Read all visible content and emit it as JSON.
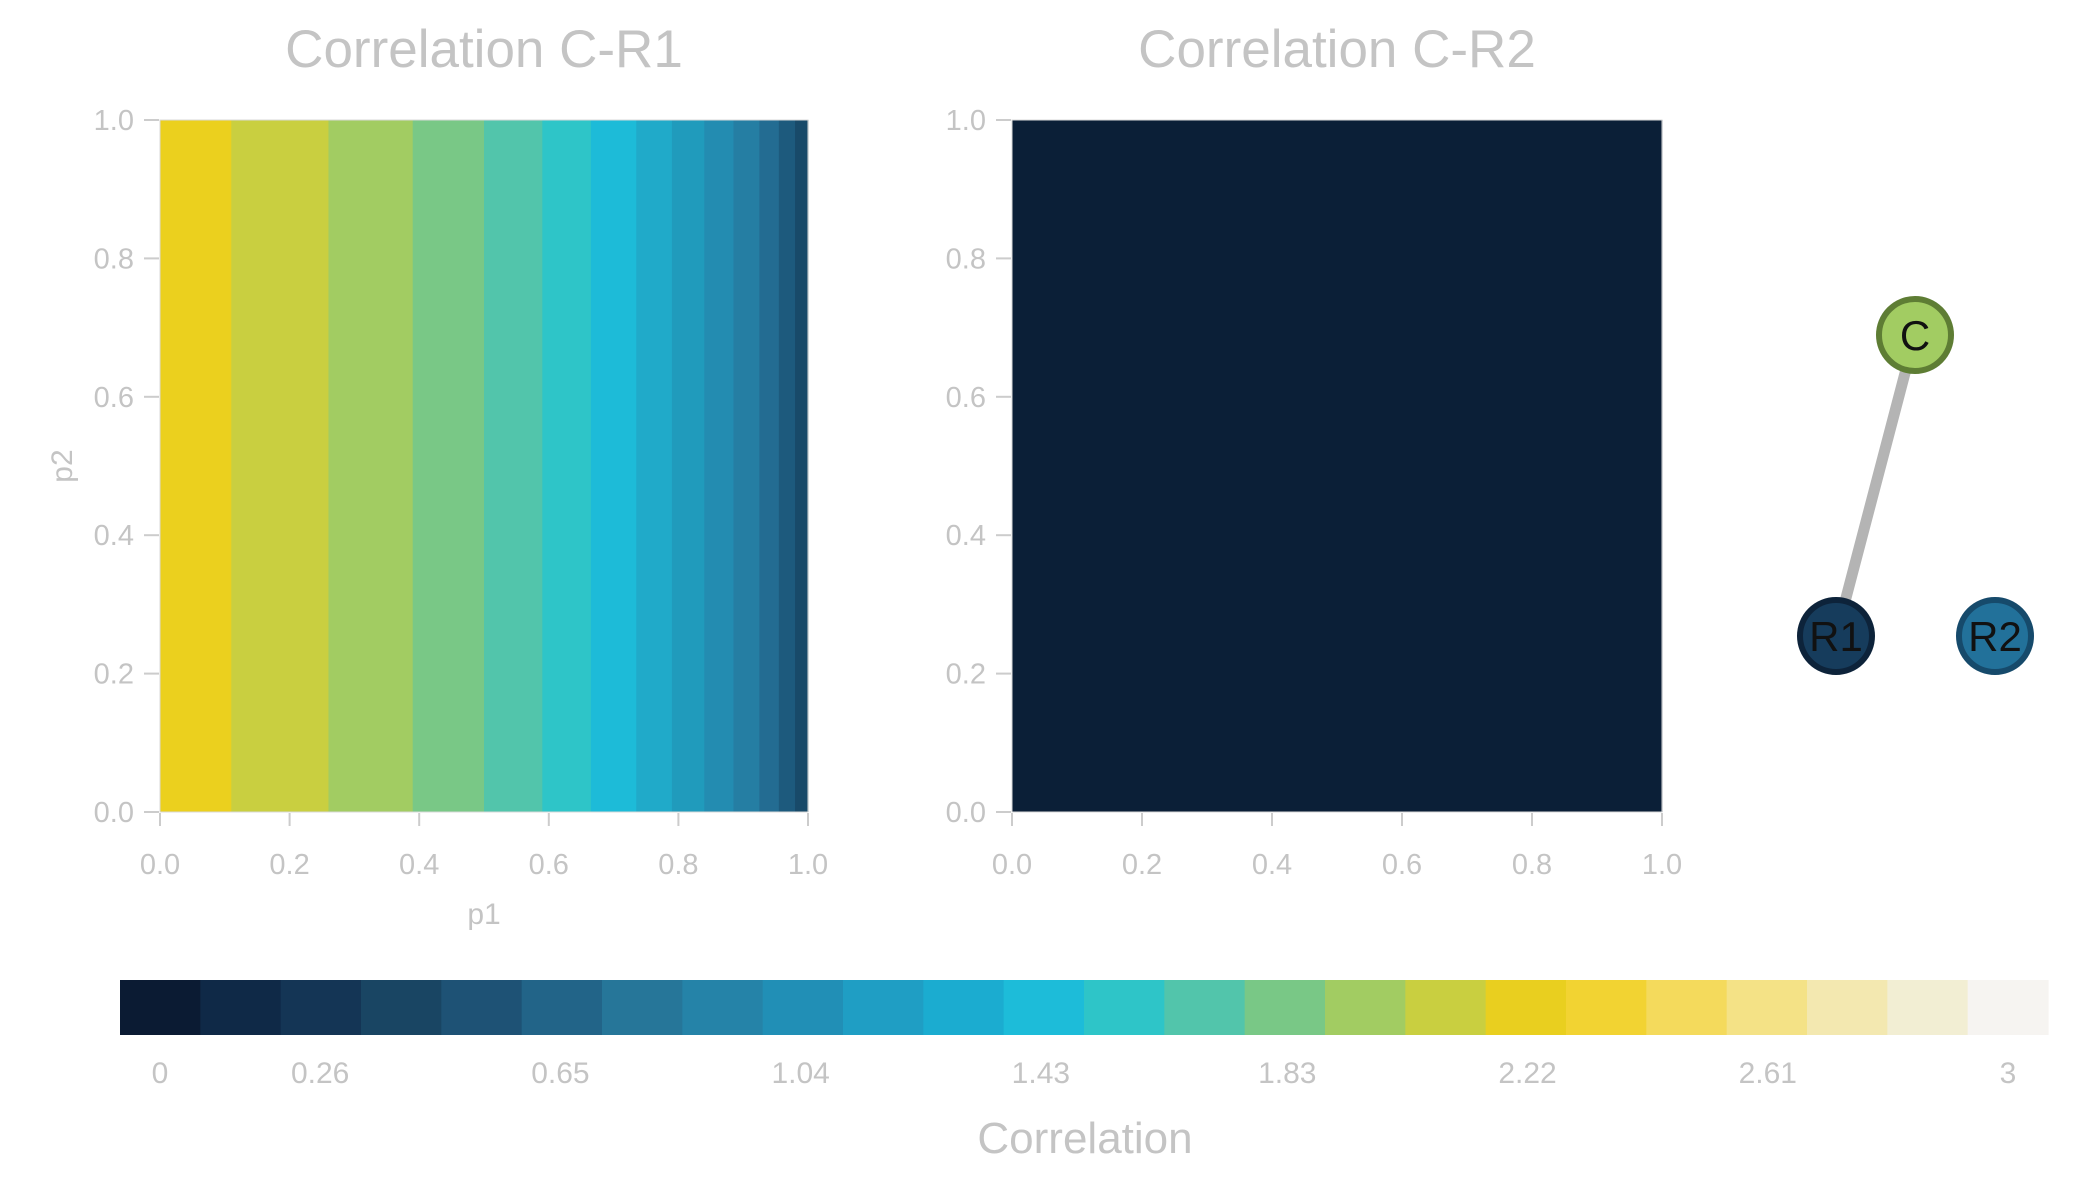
{
  "chart_data": [
    {
      "type": "heatmap",
      "title": "Correlation C-R1",
      "xlabel": "p1",
      "ylabel": "p2",
      "xlim": [
        0.0,
        1.0
      ],
      "ylim": [
        0.0,
        1.0
      ],
      "x_ticks": [
        "0.0",
        "0.2",
        "0.4",
        "0.6",
        "0.8",
        "1.0"
      ],
      "y_ticks": [
        "0.0",
        "0.2",
        "0.4",
        "0.6",
        "0.8",
        "1.0"
      ],
      "vertical_bands": [
        {
          "x0": 0.0,
          "x1": 0.11,
          "color": "#ebd01e"
        },
        {
          "x0": 0.11,
          "x1": 0.26,
          "color": "#c9cf40"
        },
        {
          "x0": 0.26,
          "x1": 0.39,
          "color": "#a2cc62"
        },
        {
          "x0": 0.39,
          "x1": 0.5,
          "color": "#79c886"
        },
        {
          "x0": 0.5,
          "x1": 0.59,
          "color": "#52c5ab"
        },
        {
          "x0": 0.59,
          "x1": 0.665,
          "color": "#2ec5c8"
        },
        {
          "x0": 0.665,
          "x1": 0.735,
          "color": "#1dbbd8"
        },
        {
          "x0": 0.735,
          "x1": 0.79,
          "color": "#20aac9"
        },
        {
          "x0": 0.79,
          "x1": 0.84,
          "color": "#209bbc"
        },
        {
          "x0": 0.84,
          "x1": 0.885,
          "color": "#238cb1"
        },
        {
          "x0": 0.885,
          "x1": 0.925,
          "color": "#257ea3"
        },
        {
          "x0": 0.925,
          "x1": 0.955,
          "color": "#236c92"
        },
        {
          "x0": 0.955,
          "x1": 0.98,
          "color": "#1d5a7d"
        },
        {
          "x0": 0.98,
          "x1": 1.0,
          "color": "#184a69"
        }
      ]
    },
    {
      "type": "heatmap",
      "title": "Correlation C-R2",
      "xlabel": "",
      "ylabel": "",
      "xlim": [
        0.0,
        1.0
      ],
      "ylim": [
        0.0,
        1.0
      ],
      "x_ticks": [
        "0.0",
        "0.2",
        "0.4",
        "0.6",
        "0.8",
        "1.0"
      ],
      "y_ticks": [
        "0.0",
        "0.2",
        "0.4",
        "0.6",
        "0.8",
        "1.0"
      ],
      "vertical_bands": [
        {
          "x0": 0.0,
          "x1": 1.0,
          "color": "#0b1f37"
        }
      ]
    }
  ],
  "network": {
    "nodes": [
      {
        "id": "C",
        "label": "C",
        "fill": "#a2cc62",
        "stroke": "#5e7d34"
      },
      {
        "id": "R1",
        "label": "R1",
        "fill": "#163c5c",
        "stroke": "#0d233a"
      },
      {
        "id": "R2",
        "label": "R2",
        "fill": "#22719a",
        "stroke": "#164a6b"
      }
    ],
    "edges": [
      {
        "source": "C",
        "target": "R1",
        "color": "#b4b4b4"
      }
    ]
  },
  "colorbar": {
    "label": "Correlation",
    "range": [
      0,
      3
    ],
    "tick_labels": [
      "0",
      "0.26",
      "0.65",
      "1.04",
      "1.43",
      "1.83",
      "2.22",
      "2.61",
      "3"
    ],
    "tick_values": [
      0,
      0.26,
      0.65,
      1.04,
      1.43,
      1.83,
      2.22,
      2.61,
      3
    ],
    "colors": [
      "#0b1b33",
      "#0f2947",
      "#143555",
      "#194563",
      "#1e5275",
      "#226488",
      "#267699",
      "#2583a8",
      "#218fb6",
      "#1f9ec4",
      "#1bacd0",
      "#1dbcd9",
      "#2ec5c8",
      "#52c5ab",
      "#79c886",
      "#a2cc62",
      "#c9cf40",
      "#e9cf1f",
      "#f2d332",
      "#f4da5c",
      "#f4e286",
      "#f3e8b0",
      "#f2eed3",
      "#f6f4f1"
    ]
  },
  "colors": {
    "text_gray": "#c4c4c4",
    "axis_gray": "#cccccc"
  }
}
